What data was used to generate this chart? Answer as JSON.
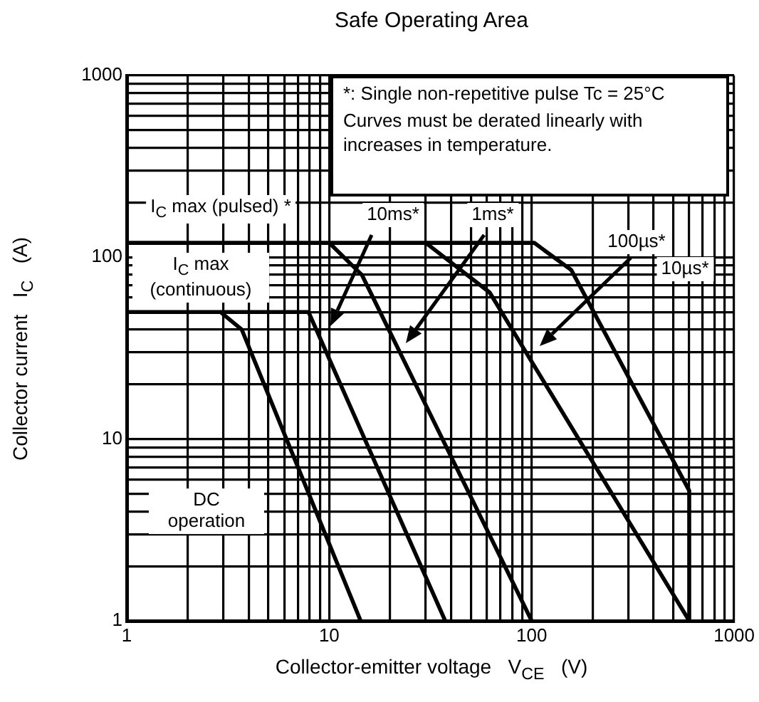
{
  "chart_data": {
    "type": "line",
    "title": "Safe Operating Area",
    "xlabel": "Collector-emitter voltage  V$_{CE}$  (V)",
    "ylabel": "Collector current  I$_{C}$  (A)",
    "log": "xy",
    "grid": true,
    "legend": false,
    "marker": "none",
    "line_style": "solid",
    "xlim": [
      1,
      1000
    ],
    "ylim": [
      1,
      1000
    ],
    "xticks": [
      1,
      {
        "value": 2,
        "label": null
      },
      {
        "value": 3,
        "label": null
      },
      {
        "value": 4,
        "label": null
      },
      {
        "value": 5,
        "label": null
      },
      {
        "value": 6,
        "label": null
      },
      {
        "value": 7,
        "label": null
      },
      {
        "value": 8,
        "label": null
      },
      {
        "value": 9,
        "label": null
      },
      10,
      {
        "value": 20,
        "label": null
      },
      {
        "value": 30,
        "label": null
      },
      {
        "value": 40,
        "label": null
      },
      {
        "value": 50,
        "label": null
      },
      {
        "value": 60,
        "label": null
      },
      {
        "value": 70,
        "label": null
      },
      {
        "value": 80,
        "label": null
      },
      {
        "value": 90,
        "label": null
      },
      100,
      {
        "value": 200,
        "label": null
      },
      {
        "value": 300,
        "label": null
      },
      {
        "value": 400,
        "label": null
      },
      {
        "value": 500,
        "label": null
      },
      {
        "value": 600,
        "label": null
      },
      {
        "value": 700,
        "label": null
      },
      {
        "value": 800,
        "label": null
      },
      {
        "value": 900,
        "label": null
      },
      1000
    ],
    "yticks": [
      1,
      {
        "value": 2,
        "label": null
      },
      {
        "value": 3,
        "label": null
      },
      {
        "value": 4,
        "label": null
      },
      {
        "value": 5,
        "label": null
      },
      {
        "value": 6,
        "label": null
      },
      {
        "value": 7,
        "label": null
      },
      {
        "value": 8,
        "label": null
      },
      {
        "value": 9,
        "label": null
      },
      10,
      {
        "value": 20,
        "label": null
      },
      {
        "value": 30,
        "label": null
      },
      {
        "value": 40,
        "label": null
      },
      {
        "value": 50,
        "label": null
      },
      {
        "value": 60,
        "label": null
      },
      {
        "value": 70,
        "label": null
      },
      {
        "value": 80,
        "label": null
      },
      {
        "value": 90,
        "label": null
      },
      100,
      {
        "value": 200,
        "label": null
      },
      {
        "value": 300,
        "label": null
      },
      {
        "value": 400,
        "label": null
      },
      {
        "value": 500,
        "label": null
      },
      {
        "value": 600,
        "label": null
      },
      {
        "value": 700,
        "label": null
      },
      {
        "value": 800,
        "label": null
      },
      {
        "value": 900,
        "label": null
      },
      1000
    ],
    "series": [
      {
        "color": "#000000",
        "x": [
          1,
          2.9,
          3.7,
          14.3
        ],
        "values": [
          50,
          50,
          40,
          1
        ]
      },
      {
        "color": "#000000",
        "x": [
          2.9,
          7.9,
          37.4
        ],
        "values": [
          50,
          50,
          1
        ]
      },
      {
        "color": "#000000",
        "x": [
          10,
          14.5,
          100
        ],
        "values": [
          120,
          80,
          1
        ]
      },
      {
        "color": "#000000",
        "x": [
          30,
          62,
          600
        ],
        "values": [
          120,
          64,
          1
        ]
      },
      {
        "color": "#000000",
        "x": [
          1,
          103,
          157,
          600,
          600
        ],
        "values": [
          120,
          120,
          85,
          5.2,
          1
        ]
      }
    ],
    "annotations": [
      "I$_{C}$ max (pulsed) *",
      "I$_{C}$ max (continuous)",
      "DC operation",
      "10ms*",
      "1ms*",
      "100µs*",
      "10µs*",
      "*: Single non-repetitive pulse    Tc = 25°C",
      "Curves must be derated linearly with increases in temperature."
    ]
  }
}
